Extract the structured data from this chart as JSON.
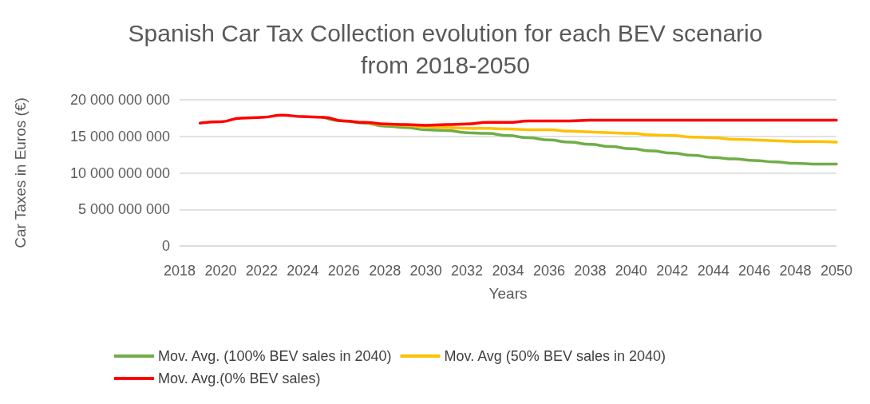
{
  "chart_data": {
    "type": "line",
    "title": "Spanish Car Tax Collection evolution for each BEV scenario\nfrom 2018-2050",
    "xlabel": "Years",
    "ylabel": "Car Taxes in Euros (€)",
    "x": [
      2019,
      2020,
      2021,
      2022,
      2023,
      2024,
      2025,
      2026,
      2027,
      2028,
      2029,
      2030,
      2031,
      2032,
      2033,
      2034,
      2035,
      2036,
      2037,
      2038,
      2039,
      2040,
      2041,
      2042,
      2043,
      2044,
      2045,
      2046,
      2047,
      2048,
      2049,
      2050
    ],
    "series": [
      {
        "name": "Mov. Avg. (100% BEV sales in 2040)",
        "color": "#70ad47",
        "values": [
          null,
          null,
          null,
          null,
          null,
          null,
          17600000000,
          17100000000,
          16800000000,
          16400000000,
          16200000000,
          15900000000,
          15800000000,
          15500000000,
          15400000000,
          15100000000,
          14800000000,
          14500000000,
          14200000000,
          13900000000,
          13600000000,
          13300000000,
          13000000000,
          12700000000,
          12400000000,
          12100000000,
          11900000000,
          11700000000,
          11500000000,
          11300000000,
          11200000000,
          11200000000
        ]
      },
      {
        "name": "Mov. Avg (50% BEV sales in 2040)",
        "color": "#ffc000",
        "values": [
          null,
          null,
          null,
          null,
          null,
          null,
          null,
          null,
          16900000000,
          16600000000,
          16500000000,
          16300000000,
          16200000000,
          16100000000,
          16100000000,
          16000000000,
          15900000000,
          15900000000,
          15700000000,
          15600000000,
          15500000000,
          15400000000,
          15200000000,
          15100000000,
          14900000000,
          14800000000,
          14600000000,
          14500000000,
          14400000000,
          14300000000,
          14300000000,
          14200000000
        ]
      },
      {
        "name": "Mov. Avg.(0% BEV sales)",
        "color": "#ff0000",
        "values": [
          16800000000,
          17000000000,
          17500000000,
          17600000000,
          17900000000,
          17700000000,
          17600000000,
          17100000000,
          16900000000,
          16700000000,
          16600000000,
          16500000000,
          16600000000,
          16700000000,
          16900000000,
          16900000000,
          17100000000,
          17100000000,
          17100000000,
          17200000000,
          17200000000,
          17200000000,
          17200000000,
          17200000000,
          17200000000,
          17200000000,
          17200000000,
          17200000000,
          17200000000,
          17200000000,
          17200000000,
          17200000000
        ]
      }
    ],
    "xlim": [
      2018,
      2050
    ],
    "xticks": [
      2018,
      2020,
      2022,
      2024,
      2026,
      2028,
      2030,
      2032,
      2034,
      2036,
      2038,
      2040,
      2042,
      2044,
      2046,
      2048,
      2050
    ],
    "ylim": [
      0,
      20000000000
    ],
    "yticks": [
      0,
      {
        "value": 5000000000,
        "label": "5 000 000 000"
      },
      {
        "value": 10000000000,
        "label": "10 000 000 000"
      },
      {
        "value": 15000000000,
        "label": "15 000 000 000"
      },
      {
        "value": 20000000000,
        "label": "20 000 000 000"
      }
    ],
    "grid": "y",
    "legend": "bottom left",
    "marker": "none",
    "line_style": "solid"
  }
}
